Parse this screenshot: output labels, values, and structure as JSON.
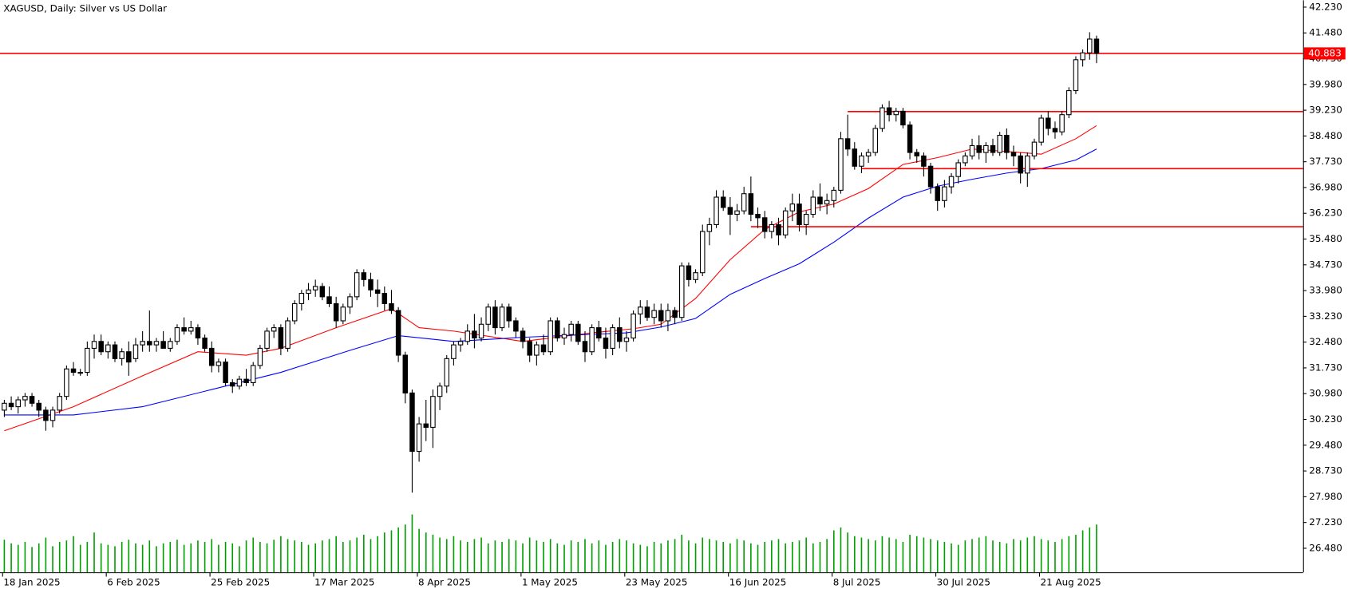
{
  "chart_data": {
    "type": "candlestick",
    "title": "XAGUSD, Daily:  Silver vs US Dollar",
    "categories": [
      "18 Jan 2025",
      null,
      null,
      null,
      null,
      null,
      null,
      null,
      null,
      null,
      null,
      null,
      null,
      null,
      null,
      "6 Feb 2025",
      null,
      null,
      null,
      null,
      null,
      null,
      null,
      null,
      null,
      null,
      null,
      null,
      null,
      null,
      "25 Feb 2025",
      null,
      null,
      null,
      null,
      null,
      null,
      null,
      null,
      null,
      null,
      null,
      null,
      null,
      null,
      "17 Mar 2025",
      null,
      null,
      null,
      null,
      null,
      null,
      null,
      null,
      null,
      null,
      null,
      null,
      null,
      null,
      "8 Apr 2025",
      null,
      null,
      null,
      null,
      null,
      null,
      null,
      null,
      null,
      null,
      null,
      null,
      null,
      null,
      "1 May 2025",
      null,
      null,
      null,
      null,
      null,
      null,
      null,
      null,
      null,
      null,
      null,
      null,
      null,
      null,
      "23 May 2025",
      null,
      null,
      null,
      null,
      null,
      null,
      null,
      null,
      null,
      null,
      null,
      null,
      null,
      null,
      "16 Jun 2025",
      null,
      null,
      null,
      null,
      null,
      null,
      null,
      null,
      null,
      null,
      null,
      null,
      null,
      null,
      "8 Jul 2025",
      null,
      null,
      null,
      null,
      null,
      null,
      null,
      null,
      null,
      null,
      null,
      null,
      null,
      null,
      "30 Jul 2025",
      null,
      null,
      null,
      null,
      null,
      null,
      null,
      null,
      null,
      null,
      null,
      null,
      null,
      null,
      "21 Aug 2025",
      null,
      null,
      null,
      null,
      null,
      null,
      null,
      null
    ],
    "candles": [
      [
        30.5,
        30.8,
        30.3,
        30.7
      ],
      [
        30.7,
        30.9,
        30.5,
        30.6
      ],
      [
        30.6,
        30.9,
        30.4,
        30.8
      ],
      [
        30.8,
        31.0,
        30.6,
        30.9
      ],
      [
        30.9,
        31.0,
        30.6,
        30.7
      ],
      [
        30.7,
        30.8,
        30.3,
        30.5
      ],
      [
        30.5,
        30.6,
        29.9,
        30.2
      ],
      [
        30.2,
        30.6,
        30.0,
        30.5
      ],
      [
        30.5,
        31.0,
        30.4,
        30.9
      ],
      [
        30.9,
        31.8,
        30.8,
        31.7
      ],
      [
        31.7,
        31.9,
        31.5,
        31.6
      ],
      [
        31.6,
        31.7,
        31.5,
        31.6
      ],
      [
        31.6,
        32.5,
        31.5,
        32.3
      ],
      [
        32.3,
        32.7,
        32.0,
        32.5
      ],
      [
        32.5,
        32.7,
        32.1,
        32.2
      ],
      [
        32.2,
        32.5,
        32.0,
        32.4
      ],
      [
        32.4,
        32.5,
        31.9,
        32.0
      ],
      [
        32.0,
        32.3,
        31.8,
        32.2
      ],
      [
        32.2,
        32.5,
        31.5,
        31.9
      ],
      [
        32.0,
        32.6,
        31.9,
        32.4
      ],
      [
        32.4,
        32.8,
        32.2,
        32.5
      ],
      [
        32.5,
        33.4,
        32.2,
        32.4
      ],
      [
        32.4,
        32.6,
        32.2,
        32.5
      ],
      [
        32.5,
        32.8,
        32.3,
        32.3
      ],
      [
        32.3,
        32.6,
        32.2,
        32.5
      ],
      [
        32.5,
        33.0,
        32.4,
        32.9
      ],
      [
        32.9,
        33.2,
        32.7,
        32.8
      ],
      [
        32.8,
        33.1,
        32.7,
        32.9
      ],
      [
        32.9,
        33.0,
        32.4,
        32.6
      ],
      [
        32.6,
        32.7,
        32.2,
        32.3
      ],
      [
        32.3,
        32.5,
        31.6,
        31.8
      ],
      [
        31.8,
        32.0,
        31.6,
        31.9
      ],
      [
        31.9,
        32.0,
        31.2,
        31.3
      ],
      [
        31.3,
        31.4,
        31.0,
        31.2
      ],
      [
        31.2,
        31.5,
        31.1,
        31.4
      ],
      [
        31.4,
        31.7,
        31.2,
        31.3
      ],
      [
        31.3,
        31.9,
        31.2,
        31.8
      ],
      [
        31.8,
        32.4,
        31.7,
        32.3
      ],
      [
        32.3,
        32.9,
        32.2,
        32.8
      ],
      [
        32.8,
        33.0,
        32.6,
        32.9
      ],
      [
        32.9,
        33.0,
        32.1,
        32.3
      ],
      [
        32.3,
        33.2,
        32.2,
        33.1
      ],
      [
        33.1,
        33.7,
        33.0,
        33.6
      ],
      [
        33.6,
        34.0,
        33.4,
        33.9
      ],
      [
        33.9,
        34.2,
        33.7,
        34.0
      ],
      [
        34.0,
        34.3,
        33.8,
        34.1
      ],
      [
        34.1,
        34.2,
        33.7,
        33.8
      ],
      [
        33.8,
        34.1,
        33.5,
        33.6
      ],
      [
        33.6,
        33.8,
        32.9,
        33.1
      ],
      [
        33.1,
        33.6,
        33.0,
        33.5
      ],
      [
        33.5,
        33.9,
        33.3,
        33.8
      ],
      [
        33.8,
        34.6,
        33.7,
        34.5
      ],
      [
        34.5,
        34.6,
        34.1,
        34.3
      ],
      [
        34.3,
        34.5,
        33.8,
        34.0
      ],
      [
        34.0,
        34.3,
        33.5,
        33.9
      ],
      [
        33.9,
        34.1,
        33.4,
        33.6
      ],
      [
        33.6,
        34.0,
        33.3,
        33.4
      ],
      [
        33.4,
        33.5,
        31.9,
        32.1
      ],
      [
        32.1,
        32.2,
        30.7,
        31.0
      ],
      [
        31.0,
        31.1,
        28.1,
        29.3
      ],
      [
        29.3,
        30.3,
        29.0,
        30.1
      ],
      [
        30.1,
        30.8,
        29.6,
        30.0
      ],
      [
        30.0,
        31.1,
        29.4,
        30.9
      ],
      [
        30.9,
        31.3,
        30.5,
        31.2
      ],
      [
        31.2,
        32.1,
        31.0,
        32.0
      ],
      [
        32.0,
        32.5,
        31.8,
        32.4
      ],
      [
        32.4,
        32.6,
        32.2,
        32.5
      ],
      [
        32.5,
        33.0,
        32.4,
        32.8
      ],
      [
        32.8,
        33.3,
        32.3,
        32.6
      ],
      [
        32.6,
        33.2,
        32.5,
        33.0
      ],
      [
        33.0,
        33.6,
        32.8,
        33.5
      ],
      [
        33.5,
        33.7,
        32.7,
        32.9
      ],
      [
        32.9,
        33.6,
        32.8,
        33.5
      ],
      [
        33.5,
        33.6,
        32.9,
        33.1
      ],
      [
        33.1,
        33.2,
        32.6,
        32.8
      ],
      [
        32.8,
        32.9,
        32.3,
        32.5
      ],
      [
        32.5,
        32.6,
        31.9,
        32.1
      ],
      [
        32.1,
        32.5,
        31.8,
        32.4
      ],
      [
        32.4,
        32.7,
        32.1,
        32.2
      ],
      [
        32.2,
        33.2,
        32.1,
        33.1
      ],
      [
        33.1,
        33.2,
        32.5,
        32.6
      ],
      [
        32.6,
        32.9,
        32.4,
        32.7
      ],
      [
        32.7,
        33.1,
        32.5,
        33.0
      ],
      [
        33.0,
        33.1,
        32.4,
        32.5
      ],
      [
        32.5,
        32.8,
        31.9,
        32.2
      ],
      [
        32.2,
        33.0,
        32.1,
        32.9
      ],
      [
        32.9,
        33.1,
        32.5,
        32.6
      ],
      [
        32.6,
        32.9,
        32.0,
        32.3
      ],
      [
        32.3,
        33.0,
        32.1,
        32.9
      ],
      [
        32.9,
        33.2,
        32.3,
        32.5
      ],
      [
        32.5,
        32.8,
        32.2,
        32.6
      ],
      [
        32.6,
        33.4,
        32.5,
        33.3
      ],
      [
        33.3,
        33.7,
        33.0,
        33.5
      ],
      [
        33.5,
        33.7,
        33.1,
        33.2
      ],
      [
        33.2,
        33.6,
        33.0,
        33.4
      ],
      [
        33.4,
        33.6,
        32.9,
        33.1
      ],
      [
        33.1,
        33.6,
        32.8,
        33.4
      ],
      [
        33.4,
        33.5,
        33.0,
        33.2
      ],
      [
        33.2,
        34.8,
        33.1,
        34.7
      ],
      [
        34.7,
        34.8,
        34.1,
        34.3
      ],
      [
        34.3,
        34.6,
        34.2,
        34.5
      ],
      [
        34.5,
        35.9,
        34.4,
        35.7
      ],
      [
        35.7,
        36.1,
        35.3,
        35.9
      ],
      [
        35.9,
        36.9,
        35.8,
        36.7
      ],
      [
        36.7,
        36.9,
        36.3,
        36.4
      ],
      [
        36.4,
        36.7,
        35.6,
        36.2
      ],
      [
        36.2,
        36.5,
        36.0,
        36.3
      ],
      [
        36.3,
        37.0,
        36.2,
        36.8
      ],
      [
        36.8,
        37.3,
        36.0,
        36.2
      ],
      [
        36.2,
        36.4,
        35.8,
        36.1
      ],
      [
        36.1,
        36.3,
        35.5,
        35.7
      ],
      [
        35.7,
        36.0,
        35.5,
        35.9
      ],
      [
        35.9,
        36.1,
        35.3,
        35.6
      ],
      [
        35.6,
        36.4,
        35.5,
        36.3
      ],
      [
        36.3,
        36.8,
        36.0,
        36.5
      ],
      [
        36.5,
        36.8,
        35.7,
        35.9
      ],
      [
        35.9,
        36.3,
        35.6,
        36.2
      ],
      [
        36.2,
        36.9,
        36.1,
        36.7
      ],
      [
        36.7,
        37.1,
        36.3,
        36.5
      ],
      [
        36.5,
        36.8,
        36.2,
        36.6
      ],
      [
        36.6,
        37.0,
        36.4,
        36.9
      ],
      [
        36.9,
        38.6,
        36.8,
        38.4
      ],
      [
        38.4,
        39.1,
        37.9,
        38.1
      ],
      [
        38.1,
        38.3,
        37.5,
        37.6
      ],
      [
        37.6,
        38.0,
        37.4,
        37.9
      ],
      [
        37.9,
        38.1,
        37.7,
        38.0
      ],
      [
        38.0,
        38.8,
        37.9,
        38.7
      ],
      [
        38.7,
        39.4,
        38.6,
        39.3
      ],
      [
        39.3,
        39.5,
        38.9,
        39.1
      ],
      [
        39.1,
        39.3,
        38.9,
        39.2
      ],
      [
        39.2,
        39.3,
        38.7,
        38.8
      ],
      [
        38.8,
        38.9,
        37.8,
        38.0
      ],
      [
        38.0,
        38.1,
        37.7,
        37.9
      ],
      [
        37.9,
        38.0,
        37.3,
        37.6
      ],
      [
        37.6,
        37.7,
        36.8,
        37.0
      ],
      [
        37.0,
        37.1,
        36.3,
        36.6
      ],
      [
        36.6,
        37.2,
        36.4,
        37.0
      ],
      [
        37.0,
        37.4,
        36.8,
        37.3
      ],
      [
        37.3,
        37.8,
        37.1,
        37.7
      ],
      [
        37.7,
        38.0,
        37.6,
        37.9
      ],
      [
        37.9,
        38.4,
        37.8,
        38.2
      ],
      [
        38.2,
        38.5,
        37.8,
        38.0
      ],
      [
        38.0,
        38.3,
        37.7,
        38.2
      ],
      [
        38.2,
        38.4,
        37.9,
        38.0
      ],
      [
        38.0,
        38.6,
        37.9,
        38.5
      ],
      [
        38.5,
        38.7,
        37.8,
        38.0
      ],
      [
        38.0,
        38.2,
        37.6,
        37.9
      ],
      [
        37.9,
        38.0,
        37.1,
        37.4
      ],
      [
        37.4,
        38.0,
        37.0,
        37.9
      ],
      [
        37.9,
        38.4,
        37.8,
        38.3
      ],
      [
        38.3,
        39.1,
        38.2,
        39.0
      ],
      [
        39.0,
        39.2,
        38.5,
        38.7
      ],
      [
        38.7,
        38.9,
        38.4,
        38.6
      ],
      [
        38.6,
        39.2,
        38.5,
        39.1
      ],
      [
        39.1,
        39.9,
        39.0,
        39.8
      ],
      [
        39.8,
        40.8,
        39.7,
        40.7
      ],
      [
        40.7,
        41.0,
        40.5,
        40.9
      ],
      [
        40.9,
        41.5,
        40.7,
        41.3
      ],
      [
        41.3,
        41.4,
        40.6,
        40.883
      ]
    ],
    "volumes": [
      45,
      40,
      38,
      42,
      35,
      40,
      48,
      36,
      42,
      44,
      50,
      38,
      42,
      55,
      40,
      38,
      36,
      42,
      45,
      40,
      38,
      44,
      36,
      40,
      42,
      45,
      38,
      40,
      44,
      42,
      46,
      38,
      42,
      40,
      36,
      44,
      48,
      42,
      40,
      45,
      50,
      46,
      44,
      42,
      38,
      40,
      44,
      46,
      50,
      42,
      44,
      48,
      52,
      46,
      50,
      55,
      58,
      62,
      66,
      80,
      60,
      55,
      52,
      48,
      46,
      50,
      44,
      42,
      46,
      48,
      40,
      44,
      42,
      46,
      44,
      40,
      48,
      44,
      42,
      46,
      40,
      38,
      44,
      42,
      46,
      40,
      44,
      38,
      42,
      46,
      44,
      40,
      38,
      36,
      42,
      40,
      44,
      46,
      52,
      44,
      40,
      48,
      46,
      44,
      42,
      40,
      46,
      44,
      40,
      38,
      42,
      44,
      46,
      40,
      42,
      44,
      48,
      40,
      42,
      46,
      58,
      62,
      55,
      50,
      48,
      46,
      44,
      50,
      48,
      46,
      42,
      52,
      50,
      48,
      46,
      44,
      42,
      40,
      38,
      44,
      46,
      48,
      50,
      44,
      42,
      40,
      46,
      44,
      48,
      50,
      46,
      44,
      42,
      46,
      50,
      52,
      58,
      62,
      66
    ],
    "volume_color": "#00a000",
    "series": [
      {
        "color": "#ff0000",
        "x": [
          0,
          10,
          20,
          28,
          35,
          40,
          48,
          56,
          60,
          65,
          75,
          85,
          91,
          95,
          100,
          105,
          110,
          115,
          120,
          125,
          130,
          135,
          140,
          145,
          150,
          155,
          158
        ],
        "values": [
          29.9,
          30.6,
          31.5,
          32.2,
          32.1,
          32.3,
          32.9,
          33.45,
          32.9,
          32.8,
          32.5,
          32.75,
          32.87,
          33.0,
          33.75,
          34.88,
          35.76,
          36.27,
          36.5,
          36.95,
          37.65,
          37.85,
          38.1,
          38.03,
          37.95,
          38.4,
          38.78
        ]
      },
      {
        "color": "#0000ff",
        "x": [
          0,
          10,
          20,
          30,
          40,
          50,
          57,
          65,
          75,
          90,
          95,
          100,
          105,
          110,
          115,
          120,
          125,
          130,
          135,
          140,
          145,
          150,
          155,
          158
        ],
        "values": [
          30.36,
          30.36,
          30.6,
          31.1,
          31.6,
          32.24,
          32.67,
          32.5,
          32.62,
          32.75,
          32.92,
          33.17,
          33.87,
          34.33,
          34.76,
          35.39,
          36.09,
          36.7,
          37.02,
          37.22,
          37.4,
          37.53,
          37.78,
          38.1
        ]
      }
    ],
    "levels": [
      {
        "value": 39.19,
        "start": 122
      },
      {
        "value": 37.53,
        "start": 124
      },
      {
        "value": 35.84,
        "start": 108
      }
    ],
    "level_color": "#ff0000",
    "last_price": 40.883,
    "ylim": [
      25.78,
      42.43
    ],
    "yticks": [
      {
        "value": 26.48,
        "label": "26.480"
      },
      {
        "value": 27.23,
        "label": "27.230"
      },
      {
        "value": 27.98,
        "label": "27.980"
      },
      {
        "value": 28.73,
        "label": "28.730"
      },
      {
        "value": 29.48,
        "label": "29.480"
      },
      {
        "value": 30.23,
        "label": "30.230"
      },
      {
        "value": 30.98,
        "label": "30.980"
      },
      {
        "value": 31.73,
        "label": "31.730"
      },
      {
        "value": 32.48,
        "label": "32.480"
      },
      {
        "value": 33.23,
        "label": "33.230"
      },
      {
        "value": 33.98,
        "label": "33.980"
      },
      {
        "value": 34.73,
        "label": "34.730"
      },
      {
        "value": 35.48,
        "label": "35.480"
      },
      {
        "value": 36.23,
        "label": "36.230"
      },
      {
        "value": 36.98,
        "label": "36.980"
      },
      {
        "value": 37.73,
        "label": "37.730"
      },
      {
        "value": 38.48,
        "label": "38.480"
      },
      {
        "value": 39.23,
        "label": "39.230"
      },
      {
        "value": 39.98,
        "label": "39.980"
      },
      {
        "value": 40.73,
        "label": "40.730"
      },
      {
        "value": 41.48,
        "label": "41.480"
      },
      {
        "value": 42.23,
        "label": "42.230"
      }
    ],
    "grid": false
  }
}
